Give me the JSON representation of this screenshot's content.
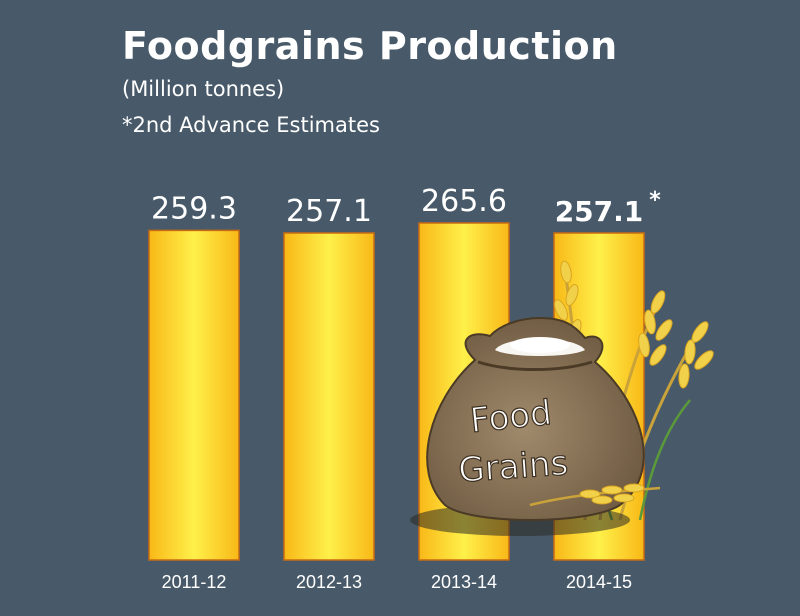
{
  "chart_data": {
    "type": "bar",
    "title": "Foodgrains Production",
    "subtitle": "(Million tonnes)",
    "note": "*2nd Advance Estimates",
    "categories": [
      "2011-12",
      "2012-13",
      "2013-14",
      "2014-15"
    ],
    "values": [
      259.3,
      257.1,
      265.6,
      257.1
    ],
    "value_labels": [
      "259.3",
      "257.1",
      "265.6",
      "257.1"
    ],
    "value_suffixes": [
      "",
      "",
      "",
      "*"
    ],
    "highlight_index": 3,
    "xlabel": "",
    "ylabel": "",
    "grid": false,
    "legend": "none",
    "colors": {
      "bar_fill_center": "#fff04a",
      "bar_fill_edge": "#f8b817",
      "bar_outline": "#c86a12",
      "text": "#ffffff",
      "background": "#485a69"
    }
  },
  "illustration": {
    "bag_text_line1": "Food",
    "bag_text_line2": "Grains"
  }
}
